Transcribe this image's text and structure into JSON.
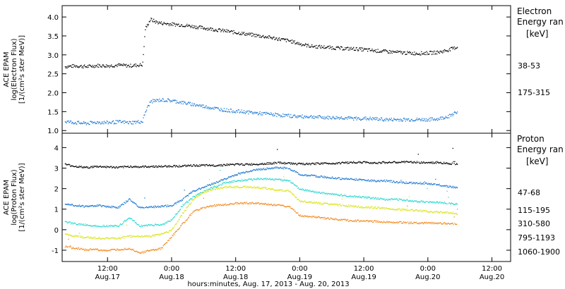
{
  "figure": {
    "x_axis_title": "hours:minutes, Aug. 17, 2013 - Aug. 20, 2013",
    "x_ticks": [
      {
        "hours": 12,
        "time": "12:00",
        "date": "Aug.17"
      },
      {
        "hours": 24,
        "time": "0:00",
        "date": "Aug.18"
      },
      {
        "hours": 36,
        "time": "12:00",
        "date": "Aug.18"
      },
      {
        "hours": 48,
        "time": "0:00",
        "date": "Aug.19"
      },
      {
        "hours": 60,
        "time": "12:00",
        "date": "Aug.19"
      },
      {
        "hours": 72,
        "time": "0:00",
        "date": "Aug.20"
      },
      {
        "hours": 84,
        "time": "12:00",
        "date": "Aug.20"
      }
    ],
    "x_range_hours": [
      3.5,
      87.5
    ]
  },
  "chart_data": [
    {
      "type": "scatter",
      "panel": "electron",
      "ylabel": [
        "ACE EPAM",
        "log(Electron Flux)",
        "[1/(cm²s ster MeV)]"
      ],
      "ylim": [
        0.93,
        4.3
      ],
      "yticks": [
        1.0,
        1.5,
        2.0,
        2.5,
        3.0,
        3.5,
        4.0
      ],
      "ytick_labels": [
        "1.0",
        "1.5",
        "2.0",
        "2.5",
        "3.0",
        "3.5",
        "4.0"
      ],
      "legend_title": [
        "Electron",
        "Energy ran",
        "[keV]"
      ],
      "series": [
        {
          "name": "38-53",
          "color": "#000000",
          "x": [
            4,
            6,
            8,
            10,
            12,
            14,
            16,
            18.5,
            19,
            20,
            21,
            22,
            24,
            26,
            28,
            30,
            32,
            34,
            36,
            38,
            40,
            42,
            44,
            46,
            48,
            50,
            52,
            54,
            56,
            58,
            60,
            62,
            64,
            66,
            68,
            70,
            72,
            74,
            76,
            77.5
          ],
          "values": [
            2.7,
            2.72,
            2.7,
            2.73,
            2.72,
            2.74,
            2.72,
            2.75,
            3.7,
            3.95,
            3.88,
            3.85,
            3.82,
            3.8,
            3.76,
            3.72,
            3.68,
            3.64,
            3.6,
            3.56,
            3.52,
            3.48,
            3.43,
            3.38,
            3.3,
            3.24,
            3.22,
            3.2,
            3.18,
            3.17,
            3.15,
            3.12,
            3.1,
            3.08,
            3.06,
            3.05,
            3.06,
            3.08,
            3.15,
            3.22
          ]
        },
        {
          "name": "175-315",
          "color": "#1a78d2",
          "x": [
            4,
            6,
            8,
            10,
            12,
            14,
            16,
            18.5,
            19,
            20,
            22,
            24,
            26,
            28,
            30,
            32,
            34,
            36,
            38,
            40,
            42,
            44,
            46,
            48,
            50,
            52,
            54,
            56,
            58,
            60,
            62,
            64,
            66,
            68,
            70,
            72,
            74,
            76,
            77.5
          ],
          "values": [
            1.25,
            1.22,
            1.2,
            1.23,
            1.22,
            1.24,
            1.22,
            1.25,
            1.5,
            1.78,
            1.82,
            1.8,
            1.75,
            1.7,
            1.65,
            1.6,
            1.55,
            1.52,
            1.5,
            1.47,
            1.45,
            1.42,
            1.4,
            1.38,
            1.38,
            1.36,
            1.35,
            1.35,
            1.33,
            1.33,
            1.32,
            1.3,
            1.3,
            1.3,
            1.3,
            1.3,
            1.32,
            1.4,
            1.52
          ]
        }
      ]
    },
    {
      "type": "scatter",
      "panel": "proton",
      "ylabel": [
        "ACE EPAM",
        "log(Proton Flux)",
        "[1/(cm²s ster MeV)]"
      ],
      "ylim": [
        -1.55,
        4.7
      ],
      "yticks": [
        -1,
        0,
        1,
        2,
        3,
        4
      ],
      "ytick_labels": [
        "-1",
        "0",
        "1",
        "2",
        "3",
        "4"
      ],
      "legend_title": [
        "Proton",
        "Energy ran",
        "[keV]"
      ],
      "series": [
        {
          "name": "47-68",
          "color": "#000000",
          "x": [
            4,
            6,
            8,
            10,
            12,
            14,
            16,
            18,
            20,
            22,
            24,
            26,
            28,
            30,
            32,
            34,
            36,
            38,
            40,
            42,
            44,
            46,
            48,
            50,
            52,
            54,
            56,
            58,
            60,
            62,
            64,
            66,
            68,
            70,
            72,
            74,
            76,
            77.5
          ],
          "values": [
            3.2,
            3.1,
            3.05,
            3.1,
            3.08,
            3.05,
            3.1,
            3.08,
            3.1,
            3.1,
            3.12,
            3.12,
            3.15,
            3.15,
            3.15,
            3.18,
            3.2,
            3.2,
            3.22,
            3.25,
            3.28,
            3.25,
            3.22,
            3.22,
            3.25,
            3.25,
            3.28,
            3.3,
            3.3,
            3.28,
            3.3,
            3.3,
            3.32,
            3.3,
            3.28,
            3.28,
            3.25,
            3.22
          ]
        },
        {
          "name": "115-195",
          "color": "#1a78d2",
          "x": [
            4,
            6,
            8,
            10,
            12,
            14,
            16,
            18,
            20,
            22,
            24,
            26,
            28,
            30,
            32,
            34,
            36,
            38,
            40,
            42,
            44,
            46,
            48,
            50,
            52,
            54,
            56,
            58,
            60,
            62,
            64,
            66,
            68,
            70,
            72,
            74,
            76,
            77.5
          ],
          "values": [
            1.3,
            1.2,
            1.15,
            1.2,
            1.15,
            1.1,
            1.5,
            1.1,
            1.12,
            1.15,
            1.2,
            1.5,
            1.9,
            2.1,
            2.3,
            2.5,
            2.7,
            2.85,
            2.95,
            3.0,
            3.05,
            3.0,
            2.7,
            2.65,
            2.6,
            2.55,
            2.5,
            2.48,
            2.45,
            2.4,
            2.4,
            2.35,
            2.3,
            2.3,
            2.25,
            2.2,
            2.12,
            2.05
          ]
        },
        {
          "name": "310-580",
          "color": "#2dd6d0",
          "x": [
            4,
            6,
            8,
            10,
            12,
            14,
            16,
            18,
            20,
            22,
            24,
            26,
            28,
            30,
            32,
            34,
            36,
            38,
            40,
            42,
            44,
            46,
            48,
            50,
            52,
            54,
            56,
            58,
            60,
            62,
            64,
            66,
            68,
            70,
            72,
            74,
            76,
            77.5
          ],
          "values": [
            0.4,
            0.3,
            0.25,
            0.2,
            0.2,
            0.2,
            0.6,
            0.2,
            0.25,
            0.25,
            0.5,
            1.2,
            1.6,
            1.9,
            2.1,
            2.3,
            2.4,
            2.45,
            2.5,
            2.5,
            2.45,
            2.4,
            2.0,
            1.9,
            1.8,
            1.75,
            1.7,
            1.65,
            1.6,
            1.55,
            1.5,
            1.5,
            1.45,
            1.4,
            1.38,
            1.35,
            1.3,
            1.25
          ]
        },
        {
          "name": "795-1193",
          "color": "#d9e31a",
          "x": [
            4,
            6,
            8,
            10,
            12,
            14,
            16,
            18,
            20,
            22,
            24,
            26,
            28,
            30,
            32,
            34,
            36,
            38,
            40,
            42,
            44,
            46,
            48,
            50,
            52,
            54,
            56,
            58,
            60,
            62,
            64,
            66,
            68,
            70,
            72,
            74,
            76,
            77.5
          ],
          "values": [
            -0.2,
            -0.3,
            -0.35,
            -0.4,
            -0.4,
            -0.4,
            -0.3,
            -0.3,
            -0.3,
            -0.2,
            0.0,
            0.8,
            1.5,
            1.85,
            2.0,
            2.1,
            2.1,
            2.1,
            2.08,
            2.02,
            1.95,
            1.9,
            1.4,
            1.35,
            1.3,
            1.25,
            1.2,
            1.15,
            1.12,
            1.1,
            1.05,
            1.0,
            1.0,
            0.95,
            0.9,
            0.88,
            0.85,
            0.8
          ]
        },
        {
          "name": "1060-1900",
          "color": "#f28a1e",
          "x": [
            4,
            6,
            8,
            10,
            12,
            14,
            16,
            18,
            20,
            22,
            24,
            26,
            28,
            30,
            32,
            34,
            36,
            38,
            40,
            42,
            44,
            46,
            48,
            50,
            52,
            54,
            56,
            58,
            60,
            62,
            64,
            66,
            68,
            70,
            72,
            74,
            76,
            77.5
          ],
          "values": [
            -0.8,
            -0.9,
            -0.95,
            -0.95,
            -1.0,
            -0.95,
            -0.9,
            -1.1,
            -1.0,
            -0.9,
            -0.3,
            0.3,
            0.9,
            1.1,
            1.2,
            1.25,
            1.3,
            1.32,
            1.3,
            1.25,
            1.2,
            1.15,
            0.7,
            0.65,
            0.6,
            0.55,
            0.5,
            0.45,
            0.45,
            0.42,
            0.4,
            0.38,
            0.36,
            0.35,
            0.35,
            0.33,
            0.32,
            0.3
          ]
        }
      ]
    }
  ]
}
